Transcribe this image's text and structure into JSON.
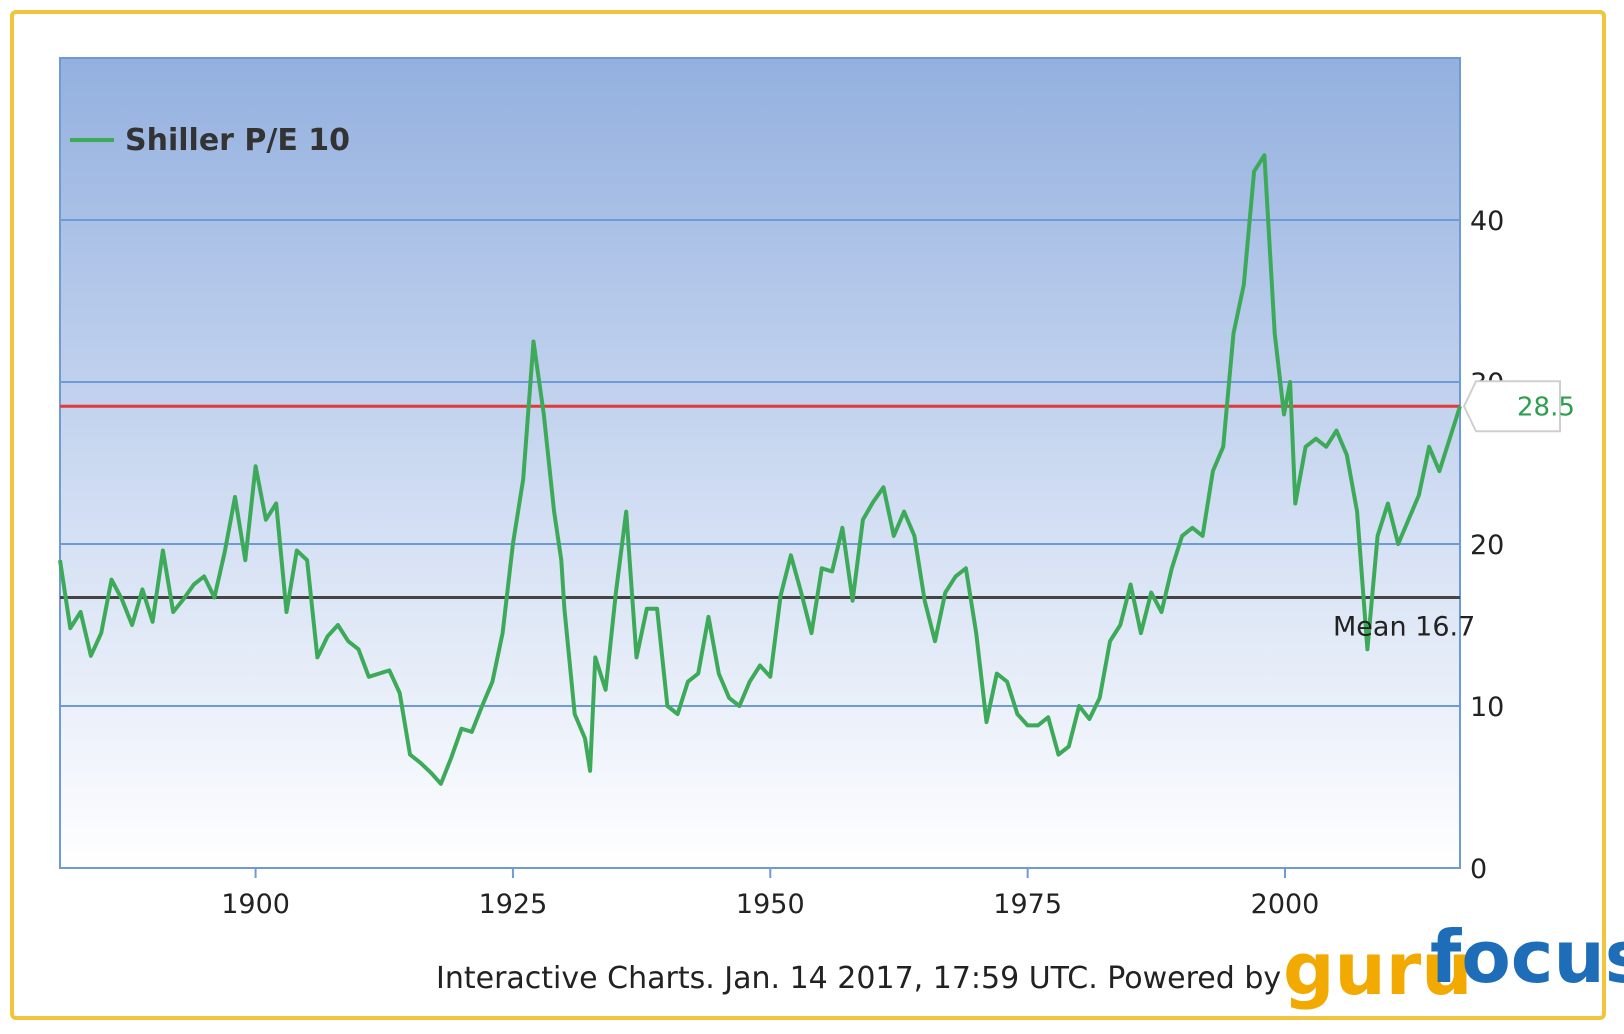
{
  "chart_data": {
    "type": "line",
    "title": "",
    "xlabel": "",
    "ylabel": "",
    "xlim": [
      1881,
      2017
    ],
    "ylim": [
      0,
      50
    ],
    "x_ticks": [
      "1900",
      "1925",
      "1950",
      "1975",
      "2000"
    ],
    "y_ticks": [
      "0",
      "10",
      "20",
      "30",
      "40"
    ],
    "grid": true,
    "legend": {
      "placement": "top-left",
      "entries": [
        "Shiller P/E 10"
      ]
    },
    "series": [
      {
        "name": "Shiller P/E 10",
        "color": "#3daa5a",
        "x": [
          1881,
          1882,
          1883,
          1884,
          1885,
          1886,
          1887,
          1888,
          1889,
          1890,
          1891,
          1892,
          1893,
          1894,
          1895,
          1896,
          1897,
          1898,
          1899,
          1900,
          1901,
          1902,
          1903,
          1904,
          1905,
          1906,
          1907,
          1908,
          1909,
          1910,
          1911,
          1912,
          1913,
          1914,
          1915,
          1916,
          1917,
          1918,
          1919,
          1920,
          1921,
          1922,
          1923,
          1924,
          1925,
          1926,
          1927,
          1928,
          1929,
          1929.7,
          1930,
          1931,
          1932,
          1932.5,
          1933,
          1934,
          1935,
          1936,
          1937,
          1938,
          1939,
          1940,
          1941,
          1942,
          1943,
          1944,
          1945,
          1946,
          1947,
          1948,
          1949,
          1950,
          1951,
          1952,
          1953,
          1954,
          1955,
          1956,
          1957,
          1958,
          1959,
          1960,
          1961,
          1962,
          1963,
          1964,
          1965,
          1966,
          1967,
          1968,
          1969,
          1970,
          1971,
          1972,
          1973,
          1974,
          1975,
          1976,
          1977,
          1978,
          1979,
          1980,
          1981,
          1982,
          1983,
          1984,
          1985,
          1986,
          1987,
          1988,
          1989,
          1990,
          1991,
          1992,
          1993,
          1994,
          1995,
          1996,
          1997,
          1998,
          1999,
          1999.9,
          2000.5,
          2001,
          2002,
          2003,
          2004,
          2005,
          2006,
          2007,
          2008,
          2009,
          2010,
          2011,
          2012,
          2013,
          2014,
          2015,
          2016,
          2017
        ],
        "values": [
          19.0,
          14.8,
          15.8,
          13.1,
          14.5,
          17.8,
          16.6,
          15.0,
          17.2,
          15.2,
          19.6,
          15.8,
          16.6,
          17.5,
          18.0,
          16.7,
          19.5,
          22.9,
          19.0,
          24.8,
          21.5,
          22.5,
          15.8,
          19.6,
          19.0,
          13.0,
          14.3,
          15.0,
          14.0,
          13.5,
          11.8,
          12.0,
          12.2,
          10.8,
          7.0,
          6.5,
          5.9,
          5.2,
          6.8,
          8.6,
          8.4,
          10.0,
          11.5,
          14.5,
          20.0,
          24.0,
          32.5,
          28.0,
          22.0,
          19.0,
          16.0,
          9.5,
          8.0,
          6.0,
          13.0,
          11.0,
          17.0,
          22.0,
          13.0,
          16.0,
          16.0,
          10.0,
          9.5,
          11.5,
          12.0,
          15.5,
          12.0,
          10.5,
          10.0,
          11.5,
          12.5,
          11.8,
          16.8,
          19.3,
          17.0,
          14.5,
          18.5,
          18.3,
          21.0,
          16.5,
          21.5,
          22.6,
          23.5,
          20.5,
          22.0,
          20.5,
          16.5,
          14.0,
          17.0,
          18.0,
          18.5,
          14.5,
          9.0,
          12.0,
          11.5,
          9.5,
          8.8,
          8.8,
          9.3,
          7.0,
          7.5,
          10.0,
          9.2,
          10.5,
          14.0,
          15.0,
          17.5,
          14.5,
          17.0,
          15.8,
          18.5,
          20.5,
          21.0,
          20.5,
          24.5,
          26.0,
          33.0,
          36.0,
          43.0,
          44.0,
          33.0,
          28.0,
          30.0,
          22.5,
          26.0,
          26.5,
          26.0,
          27.0,
          25.5,
          22.0,
          13.5,
          20.5,
          22.5,
          20.0,
          21.5,
          23.0,
          26.0,
          24.5,
          26.5,
          28.5
        ]
      }
    ],
    "reference_lines": [
      {
        "name": "mean",
        "label": "Mean 16.7",
        "value": 16.7,
        "color": "#444444"
      },
      {
        "name": "current",
        "label": "28.5",
        "value": 28.5,
        "color": "#e23a3a"
      }
    ]
  },
  "legend": {
    "label": "Shiller P/E 10"
  },
  "footer": {
    "text": "Interactive Charts. Jan. 14 2017, 17:59 UTC. Powered by"
  },
  "logo": {
    "part1": "guru",
    "part2": "focus"
  }
}
